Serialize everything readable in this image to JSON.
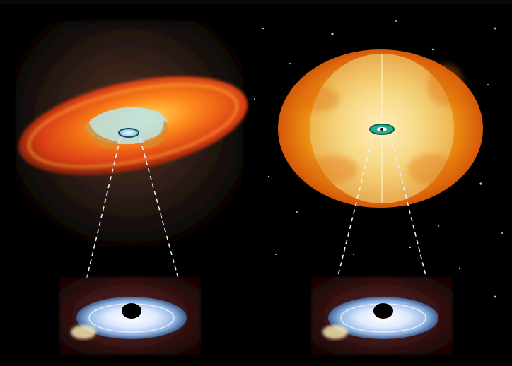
{
  "image": {
    "panels": [
      {
        "id": "left",
        "subject": "dust-torus-accretion-disk",
        "inset": "black-hole-disk"
      },
      {
        "id": "right",
        "subject": "spherical-cocoon-accretion-disk",
        "inset": "black-hole-disk"
      }
    ],
    "colors": {
      "background": "#000000",
      "torus_orange": "#e8531a",
      "torus_yellow": "#ffd24a",
      "sphere_orange": "#f28a12",
      "sphere_inner": "#f7f0c7",
      "disk_blue": "#dfe9ff",
      "dash_line": "#e8eefc"
    }
  }
}
